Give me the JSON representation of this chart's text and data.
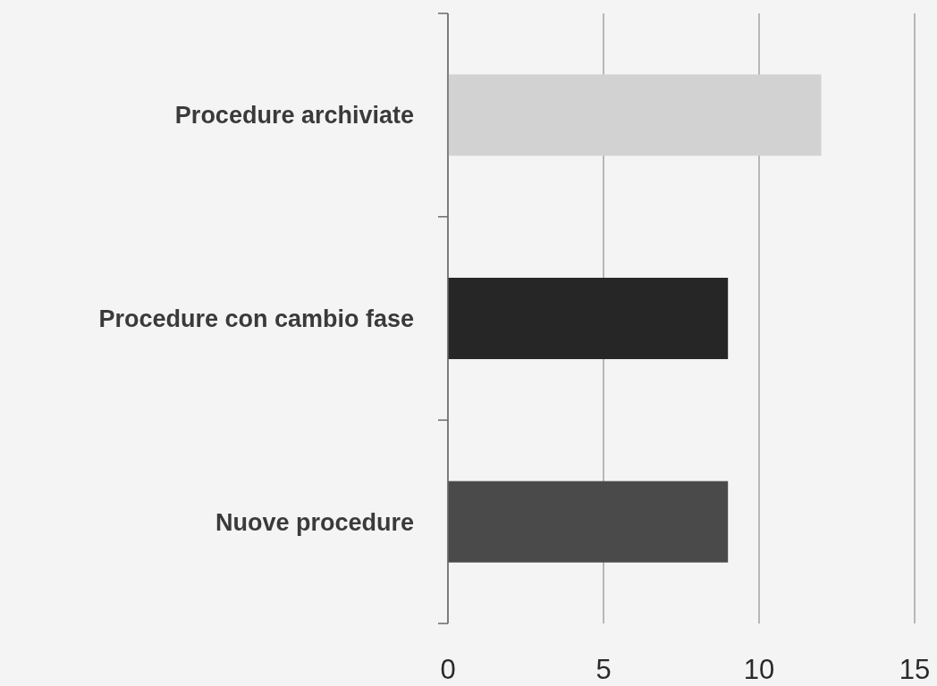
{
  "chart_data": {
    "type": "bar",
    "orientation": "horizontal",
    "categories": [
      "Procedure archiviate",
      "Procedure con cambio fase",
      "Nuove procedure"
    ],
    "values": [
      12,
      9,
      9
    ],
    "colors": [
      "#d2d2d2",
      "#262626",
      "#4a4a4a"
    ],
    "xlim": [
      0,
      15
    ],
    "xticks": [
      0,
      5,
      10,
      15
    ],
    "grid": "x"
  }
}
